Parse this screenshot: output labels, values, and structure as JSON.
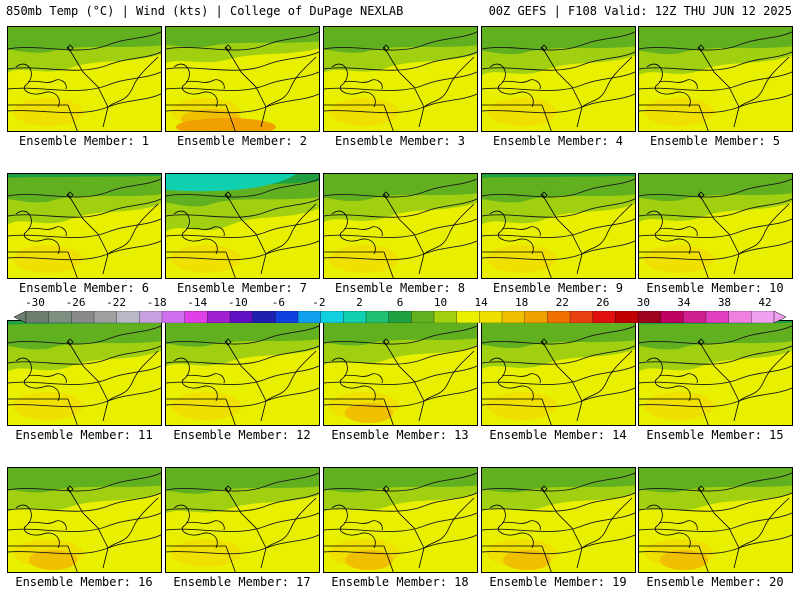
{
  "header": {
    "left": "850mb Temp (°C) | Wind (kts) | College of DuPage NEXLAB",
    "right": "00Z GEFS | F108 Valid: 12Z THU JUN 12 2025"
  },
  "members": [
    {
      "label": "Ensemble Member: 1",
      "warmth": 0.55
    },
    {
      "label": "Ensemble Member: 2",
      "warmth": 0.75
    },
    {
      "label": "Ensemble Member: 3",
      "warmth": 0.55
    },
    {
      "label": "Ensemble Member: 4",
      "warmth": 0.5
    },
    {
      "label": "Ensemble Member: 5",
      "warmth": 0.5
    },
    {
      "label": "Ensemble Member: 6",
      "warmth": 0.45
    },
    {
      "label": "Ensemble Member: 7",
      "warmth": 0.3
    },
    {
      "label": "Ensemble Member: 8",
      "warmth": 0.5
    },
    {
      "label": "Ensemble Member: 9",
      "warmth": 0.45
    },
    {
      "label": "Ensemble Member: 10",
      "warmth": 0.5
    },
    {
      "label": "Ensemble Member: 11",
      "warmth": 0.45
    },
    {
      "label": "Ensemble Member: 12",
      "warmth": 0.55
    },
    {
      "label": "Ensemble Member: 13",
      "warmth": 0.6
    },
    {
      "label": "Ensemble Member: 14",
      "warmth": 0.5
    },
    {
      "label": "Ensemble Member: 15",
      "warmth": 0.45
    },
    {
      "label": "Ensemble Member: 16",
      "warmth": 0.6
    },
    {
      "label": "Ensemble Member: 17",
      "warmth": 0.55
    },
    {
      "label": "Ensemble Member: 18",
      "warmth": 0.6
    },
    {
      "label": "Ensemble Member: 19",
      "warmth": 0.6
    },
    {
      "label": "Ensemble Member: 20",
      "warmth": 0.6
    }
  ],
  "colorbar": {
    "ticks": [
      "-30",
      "-26",
      "-22",
      "-18",
      "-14",
      "-10",
      "-6",
      "-2",
      "2",
      "6",
      "10",
      "14",
      "18",
      "22",
      "26",
      "30",
      "34",
      "38",
      "42"
    ],
    "colors": [
      "#6e7f72",
      "#7e8f82",
      "#8a8a8a",
      "#a0a0a0",
      "#b8b8c8",
      "#c8a0e0",
      "#d070f0",
      "#e040e8",
      "#a020d0",
      "#6010c0",
      "#2020b0",
      "#1040e0",
      "#10a0f0",
      "#10d0e0",
      "#10d0b0",
      "#20c070",
      "#20a040",
      "#60b020",
      "#a0d010",
      "#e8f000",
      "#f0e000",
      "#f0c000",
      "#f0a000",
      "#f07000",
      "#e84010",
      "#e01010",
      "#c00000",
      "#a00020",
      "#c00060",
      "#d02090",
      "#e040c0",
      "#f080e0",
      "#f0a0f0"
    ]
  }
}
